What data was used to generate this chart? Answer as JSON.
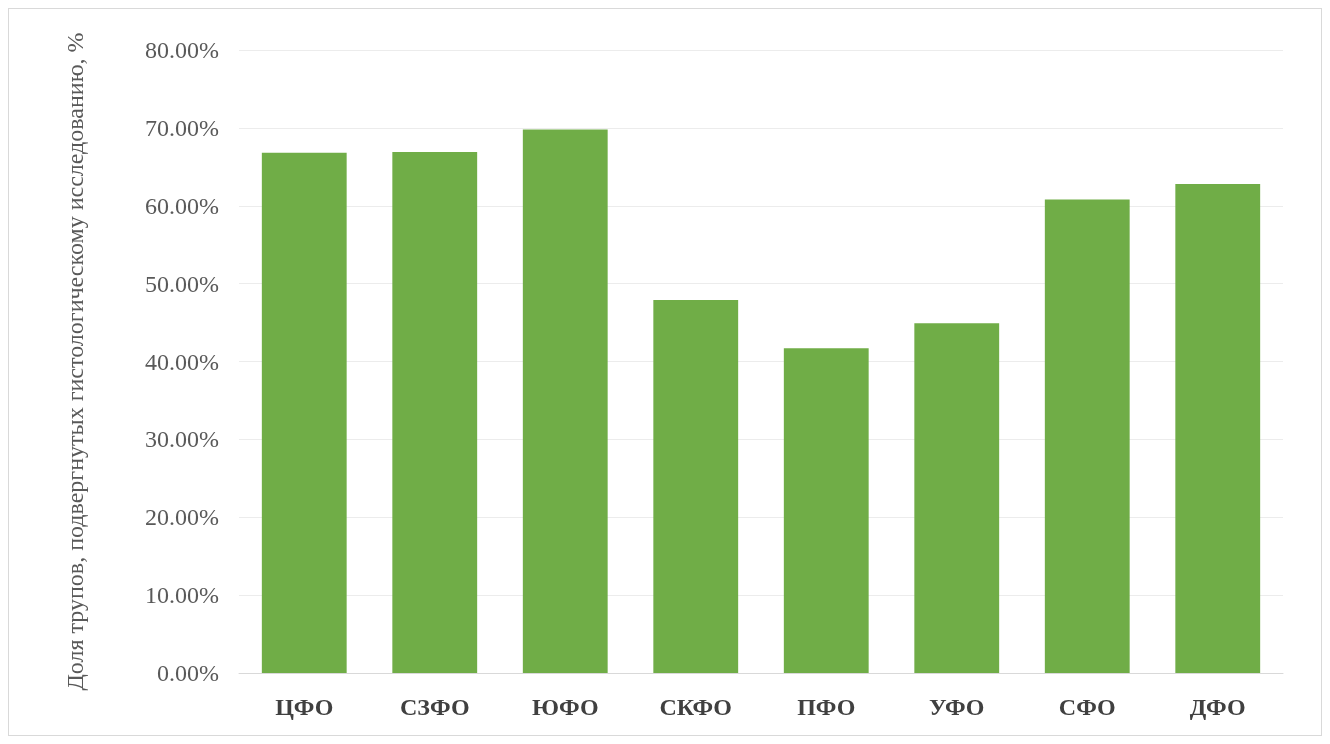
{
  "chart_data": {
    "type": "bar",
    "ylabel": "Доля трупов, подвергнутых гистологическому исследованию, %",
    "categories": [
      "ЦФО",
      "СЗФО",
      "ЮФО",
      "СКФО",
      "ПФО",
      "УФО",
      "СФО",
      "ДФО"
    ],
    "values": [
      66.8,
      66.9,
      69.8,
      47.9,
      41.7,
      44.9,
      60.8,
      62.8
    ],
    "color": "#70ad47",
    "ylim": [
      0,
      80
    ],
    "yticks": [
      {
        "value": 0,
        "label": "0.00%"
      },
      {
        "value": 10,
        "label": "10.00%"
      },
      {
        "value": 20,
        "label": "20.00%"
      },
      {
        "value": 30,
        "label": "30.00%"
      },
      {
        "value": 40,
        "label": "40.00%"
      },
      {
        "value": 50,
        "label": "50.00%"
      },
      {
        "value": 60,
        "label": "60.00%"
      },
      {
        "value": 70,
        "label": "70.00%"
      },
      {
        "value": 80,
        "label": "80.00%"
      }
    ],
    "grid": "y"
  }
}
